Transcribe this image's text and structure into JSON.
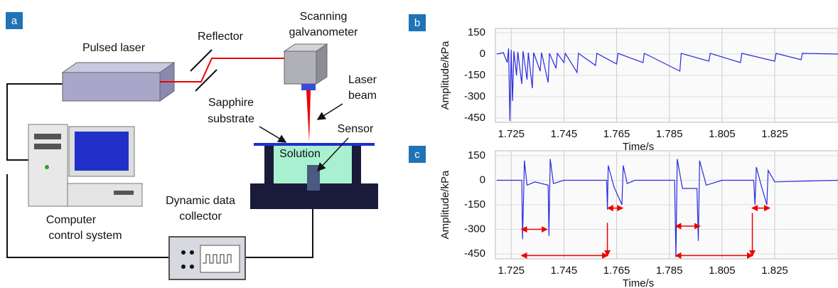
{
  "diagram": {
    "panel_label": "a",
    "labels": {
      "pulsed_laser": "Pulsed laser",
      "reflector": "Reflector",
      "galvanometer": [
        "Scanning",
        "galvanometer"
      ],
      "laser_beam": [
        "Laser",
        "beam"
      ],
      "sapphire": [
        "Sapphire",
        "substrate"
      ],
      "sensor": "Sensor",
      "solution": "Solution",
      "computer": [
        "Computer",
        "control system"
      ],
      "collector": [
        "Dynamic data",
        "collector"
      ]
    }
  },
  "chart_data": [
    {
      "type": "line",
      "panel_label": "b",
      "y_label": "Amplitude/kPa",
      "x_label": "Time/s",
      "xlim": [
        1.719,
        1.849
      ],
      "ylim": [
        -480,
        180
      ],
      "xticks": [
        1.725,
        1.745,
        1.765,
        1.785,
        1.805,
        1.825
      ],
      "yticks": [
        150,
        0,
        -150,
        -300,
        -450
      ],
      "grid": true,
      "series": [
        {
          "color": "#2a2ae0",
          "x": [
            1.7195,
            1.722,
            1.7235,
            1.724,
            1.7245,
            1.725,
            1.7255,
            1.726,
            1.727,
            1.7275,
            1.729,
            1.7295,
            1.731,
            1.7315,
            1.733,
            1.7335,
            1.736,
            1.7365,
            1.739,
            1.7395,
            1.742,
            1.7425,
            1.745,
            1.7455,
            1.75,
            1.7505,
            1.757,
            1.7575,
            1.765,
            1.7655,
            1.775,
            1.7755,
            1.789,
            1.7895,
            1.8,
            1.8005,
            1.812,
            1.8125,
            1.825,
            1.8255,
            1.835,
            1.8355,
            1.849
          ],
          "values": [
            0,
            10,
            -60,
            40,
            -470,
            30,
            -330,
            20,
            -150,
            15,
            -210,
            20,
            -180,
            10,
            -240,
            10,
            -120,
            10,
            -200,
            5,
            -100,
            5,
            -60,
            5,
            -130,
            5,
            -80,
            5,
            -70,
            5,
            -60,
            5,
            -120,
            5,
            -50,
            5,
            -60,
            5,
            -50,
            5,
            -40,
            5,
            0
          ]
        }
      ]
    },
    {
      "type": "line",
      "panel_label": "c",
      "y_label": "Amplitude/kPa",
      "x_label": "Time/s",
      "xlim": [
        1.719,
        1.849
      ],
      "ylim": [
        -480,
        180
      ],
      "xticks": [
        1.725,
        1.745,
        1.765,
        1.785,
        1.805,
        1.825
      ],
      "yticks": [
        150,
        0,
        -150,
        -300,
        -450
      ],
      "grid": true,
      "series": [
        {
          "color": "#2a2ae0",
          "x": [
            1.7195,
            1.729,
            1.7293,
            1.73,
            1.731,
            1.734,
            1.739,
            1.7393,
            1.7398,
            1.741,
            1.745,
            1.7612,
            1.7615,
            1.7618,
            1.764,
            1.767,
            1.7675,
            1.769,
            1.772,
            1.787,
            1.7875,
            1.788,
            1.79,
            1.7955,
            1.796,
            1.7965,
            1.799,
            1.805,
            1.817,
            1.8175,
            1.818,
            1.82,
            1.822,
            1.8225,
            1.825,
            1.849
          ],
          "values": [
            0,
            0,
            -360,
            120,
            -30,
            -10,
            -30,
            -340,
            130,
            -20,
            0,
            0,
            -180,
            90,
            -40,
            -150,
            90,
            -20,
            0,
            0,
            -470,
            130,
            -50,
            -50,
            -370,
            120,
            -30,
            0,
            0,
            -150,
            80,
            -40,
            -150,
            60,
            -10,
            0
          ]
        }
      ],
      "intervals": [
        {
          "start": 1.729,
          "end": 1.7385,
          "level": -300
        },
        {
          "start": 1.729,
          "end": 1.7615,
          "level": -460
        },
        {
          "start": 1.7617,
          "end": 1.7672,
          "level": -170
        },
        {
          "start": 1.7875,
          "end": 1.7965,
          "level": -280
        },
        {
          "start": 1.7875,
          "end": 1.8165,
          "level": -460
        },
        {
          "start": 1.8165,
          "end": 1.823,
          "level": -170
        }
      ],
      "markers": [
        {
          "x": 1.7615,
          "top": -260,
          "bottom": -460
        },
        {
          "x": 1.8165,
          "top": -200,
          "bottom": -460
        }
      ]
    }
  ]
}
